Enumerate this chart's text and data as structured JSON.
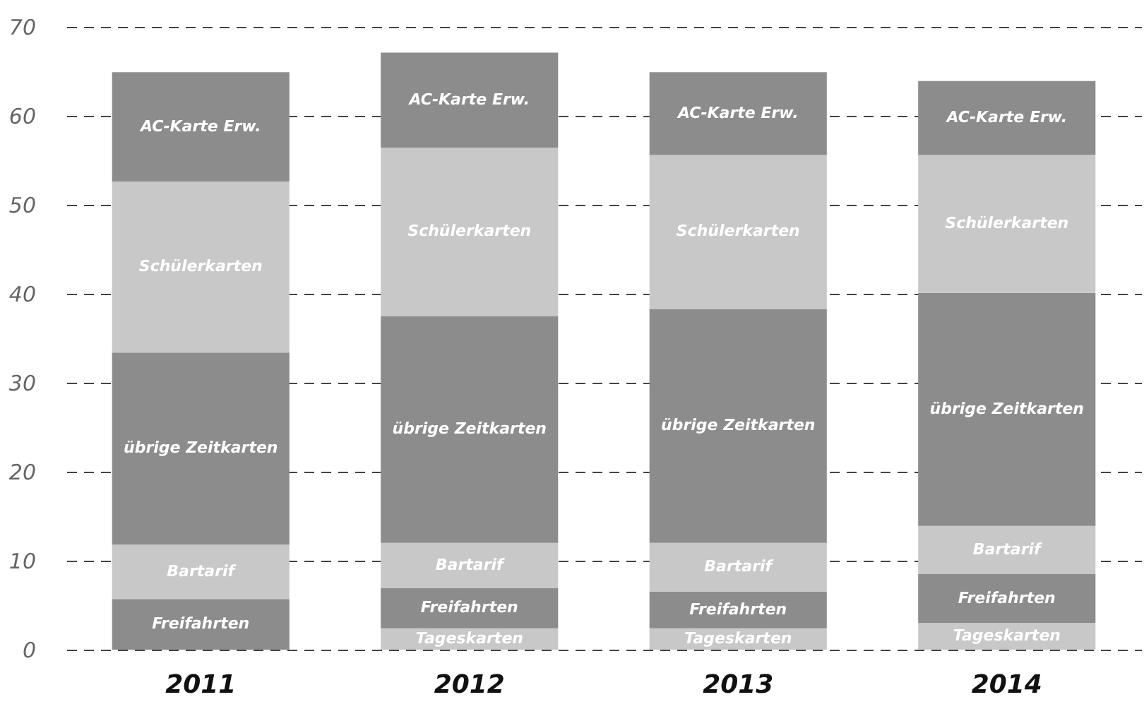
{
  "chart_data": {
    "type": "bar",
    "stacked": true,
    "categories": [
      "2011",
      "2012",
      "2013",
      "2014"
    ],
    "series": [
      {
        "name": "Tageskarten",
        "color": "#c8c8c8",
        "values": [
          null,
          2.4,
          2.4,
          3.0
        ]
      },
      {
        "name": "Freifahrten",
        "color": "#8c8c8c",
        "values": [
          5.7,
          4.5,
          4.1,
          5.5
        ]
      },
      {
        "name": "Bartarif",
        "color": "#c8c8c8",
        "values": [
          6.1,
          5.1,
          5.5,
          5.4
        ]
      },
      {
        "name": "übrige Zeitkarten",
        "color": "#8c8c8c",
        "values": [
          21.6,
          25.5,
          26.3,
          26.2
        ]
      },
      {
        "name": "Schülerkarten",
        "color": "#c8c8c8",
        "values": [
          19.2,
          18.9,
          17.3,
          15.5
        ]
      },
      {
        "name": "AC-Karte Erw.",
        "color": "#8c8c8c",
        "values": [
          12.3,
          10.7,
          9.3,
          8.3
        ]
      }
    ],
    "ylim": [
      0,
      70
    ],
    "yticks": [
      0,
      10,
      20,
      30,
      40,
      50,
      60,
      70
    ],
    "grid": "y",
    "legend": false
  }
}
